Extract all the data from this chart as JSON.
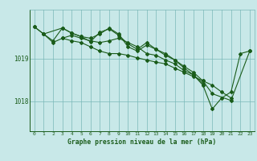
{
  "background_color": "#c8e8e8",
  "line_color": "#1a5c1a",
  "grid_color": "#7ab8b8",
  "xlabel": "Graphe pression niveau de la mer (hPa)",
  "xlabel_color": "#1a5c1a",
  "ylim": [
    1017.3,
    1020.15
  ],
  "xlim": [
    -0.5,
    23.5
  ],
  "yticks": [
    1018,
    1019
  ],
  "xticks": [
    0,
    1,
    2,
    3,
    4,
    5,
    6,
    7,
    8,
    9,
    10,
    11,
    12,
    13,
    14,
    15,
    16,
    17,
    18,
    19,
    20,
    21,
    22,
    23
  ],
  "line_main_x": [
    0,
    1,
    2,
    3,
    4,
    5,
    6,
    7,
    8,
    9,
    10,
    11,
    12,
    13,
    14,
    15,
    16,
    17,
    18,
    19,
    20,
    21,
    22,
    23
  ],
  "line_main_y": [
    1019.75,
    1019.58,
    1019.42,
    1019.72,
    1019.6,
    1019.52,
    1019.4,
    1019.62,
    1019.7,
    1019.55,
    1019.35,
    1019.22,
    1019.38,
    1019.22,
    1019.12,
    1018.97,
    1018.78,
    1018.62,
    1018.38,
    1017.82,
    1018.08,
    1018.22,
    1019.12,
    1019.18
  ],
  "line2_x": [
    0,
    1,
    3,
    4,
    5,
    6,
    7,
    8,
    9,
    10,
    11,
    12,
    13,
    14,
    15,
    16,
    17,
    18,
    19,
    21,
    23
  ],
  "line2_y": [
    1019.75,
    1019.58,
    1019.72,
    1019.6,
    1019.52,
    1019.48,
    1019.58,
    1019.72,
    1019.58,
    1019.28,
    1019.18,
    1019.32,
    1019.22,
    1019.08,
    1018.97,
    1018.82,
    1018.68,
    1018.48,
    1018.18,
    1018.02,
    1019.18
  ],
  "line3_x": [
    1,
    2,
    3,
    4,
    5,
    6,
    7,
    8,
    9,
    10,
    11,
    12,
    13,
    14,
    15,
    16,
    17,
    18
  ],
  "line3_y": [
    1019.58,
    1019.38,
    1019.48,
    1019.55,
    1019.48,
    1019.42,
    1019.38,
    1019.42,
    1019.48,
    1019.38,
    1019.28,
    1019.12,
    1019.08,
    1018.97,
    1018.88,
    1018.72,
    1018.62,
    1018.42
  ],
  "line4_x": [
    3,
    4,
    5,
    6,
    7,
    8,
    9,
    10,
    11,
    12,
    13,
    14,
    15,
    16,
    17,
    18,
    19,
    20,
    21
  ],
  "line4_y": [
    1019.48,
    1019.42,
    1019.38,
    1019.28,
    1019.18,
    1019.12,
    1019.12,
    1019.08,
    1019.02,
    1018.97,
    1018.92,
    1018.88,
    1018.78,
    1018.68,
    1018.58,
    1018.48,
    1018.38,
    1018.22,
    1018.08
  ]
}
